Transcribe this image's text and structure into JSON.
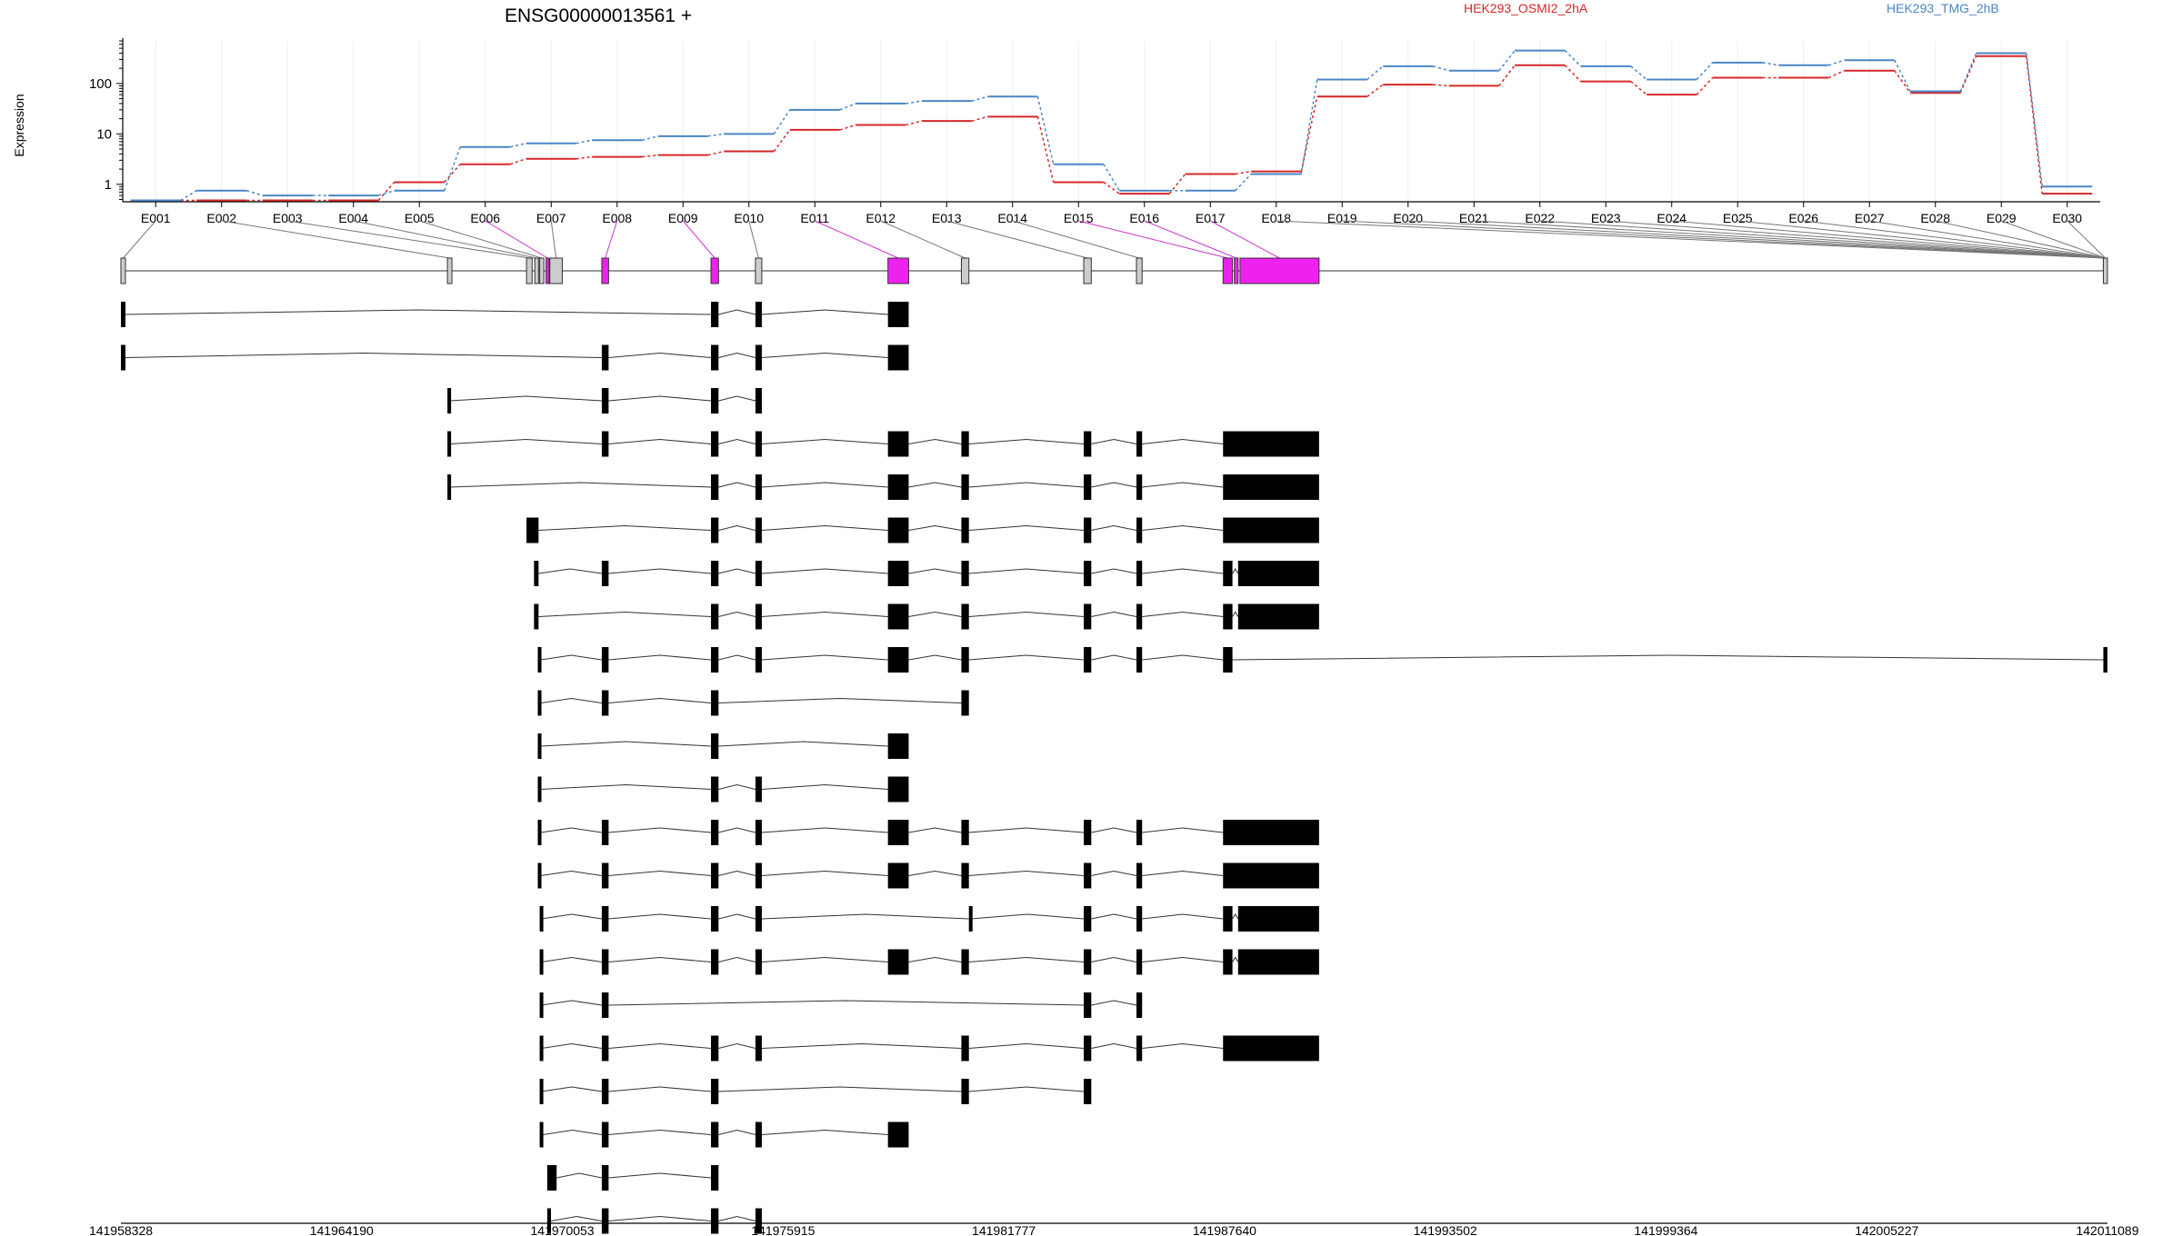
{
  "chart_data": {
    "type": "line",
    "title": "ENSG00000013561 +",
    "ylabel": "Expression",
    "y_scale": "log",
    "y_ticks": [
      {
        "value": 1,
        "label": "1"
      },
      {
        "value": 10,
        "label": "10"
      },
      {
        "value": 100,
        "label": "100"
      }
    ],
    "ylim": [
      0.45,
      700
    ],
    "legend_placement": "top-right",
    "grid": true,
    "categories": [
      "E001",
      "E002",
      "E003",
      "E004",
      "E005",
      "E006",
      "E007",
      "E008",
      "E009",
      "E010",
      "E011",
      "E012",
      "E013",
      "E014",
      "E015",
      "E016",
      "E017",
      "E018",
      "E019",
      "E020",
      "E021",
      "E022",
      "E023",
      "E024",
      "E025",
      "E026",
      "E027",
      "E028",
      "E029",
      "E030"
    ],
    "series": [
      {
        "name": "HEK293_OSMI2_2hA",
        "color": "#d62728",
        "values": [
          0.48,
          0.48,
          0.48,
          0.48,
          1.1,
          2.5,
          3.2,
          3.5,
          3.8,
          4.5,
          12,
          15,
          18,
          22,
          1.1,
          0.65,
          1.6,
          1.8,
          55,
          95,
          90,
          230,
          110,
          60,
          130,
          130,
          180,
          65,
          350,
          0.65
        ]
      },
      {
        "name": "HEK293_TMG_2hB",
        "color": "#4a86c5",
        "values": [
          0.48,
          0.75,
          0.6,
          0.6,
          0.75,
          5.5,
          6.5,
          7.5,
          9,
          10,
          30,
          40,
          45,
          55,
          2.5,
          0.75,
          0.75,
          1.6,
          120,
          220,
          180,
          450,
          220,
          120,
          260,
          230,
          290,
          70,
          400,
          0.9
        ]
      }
    ],
    "exon_model": {
      "gene_start": 141958328,
      "gene_end": 142011089,
      "exons": [
        {
          "start": 141958328,
          "end": 141958448,
          "highlight": false
        },
        {
          "start": 141967000,
          "end": 141967120,
          "highlight": false
        },
        {
          "start": 141969100,
          "end": 141969250,
          "highlight": false
        },
        {
          "start": 141969320,
          "end": 141969420,
          "highlight": false
        },
        {
          "start": 141969450,
          "end": 141969560,
          "highlight": false
        },
        {
          "start": 141969620,
          "end": 141969700,
          "highlight": true
        },
        {
          "start": 141969720,
          "end": 141970050,
          "highlight": false
        },
        {
          "start": 141971100,
          "end": 141971280,
          "highlight": true
        },
        {
          "start": 141974000,
          "end": 141974200,
          "highlight": true
        },
        {
          "start": 141975180,
          "end": 141975350,
          "highlight": false
        },
        {
          "start": 141978700,
          "end": 141979250,
          "highlight": true
        },
        {
          "start": 141980650,
          "end": 141980850,
          "highlight": false
        },
        {
          "start": 141983900,
          "end": 141984100,
          "highlight": false
        },
        {
          "start": 141985300,
          "end": 141985450,
          "highlight": false
        },
        {
          "start": 141987600,
          "end": 141987850,
          "highlight": true
        },
        {
          "start": 141987900,
          "end": 141988000,
          "highlight": true
        },
        {
          "start": 141988050,
          "end": 141990150,
          "highlight": true
        },
        {
          "start": 142010980,
          "end": 142011089,
          "highlight": false
        }
      ]
    },
    "transcripts": [
      [
        [
          141958328,
          141958448
        ],
        [
          141974000,
          141974200
        ],
        [
          141975180,
          141975350
        ],
        [
          141978700,
          141979250
        ]
      ],
      [
        [
          141958328,
          141958448
        ],
        [
          141971100,
          141971280
        ],
        [
          141974000,
          141974200
        ],
        [
          141975180,
          141975350
        ],
        [
          141978700,
          141979250
        ]
      ],
      [
        [
          141967000,
          141967070
        ],
        [
          141971100,
          141971280
        ],
        [
          141974000,
          141974200
        ],
        [
          141975180,
          141975350
        ]
      ],
      [
        [
          141967000,
          141967070
        ],
        [
          141971100,
          141971280
        ],
        [
          141974000,
          141974200
        ],
        [
          141975180,
          141975350
        ],
        [
          141978700,
          141979250
        ],
        [
          141980650,
          141980850
        ],
        [
          141983900,
          141984100
        ],
        [
          141985300,
          141985450
        ],
        [
          141987600,
          141990150
        ]
      ],
      [
        [
          141967000,
          141967070
        ],
        [
          141974000,
          141974200
        ],
        [
          141975180,
          141975350
        ],
        [
          141978700,
          141979250
        ],
        [
          141980650,
          141980850
        ],
        [
          141983900,
          141984100
        ],
        [
          141985300,
          141985450
        ],
        [
          141987600,
          141990150
        ]
      ],
      [
        [
          141969100,
          141969420
        ],
        [
          141974000,
          141974200
        ],
        [
          141975180,
          141975350
        ],
        [
          141978700,
          141979250
        ],
        [
          141980650,
          141980850
        ],
        [
          141983900,
          141984100
        ],
        [
          141985300,
          141985450
        ],
        [
          141987600,
          141990150
        ]
      ],
      [
        [
          141969300,
          141969420
        ],
        [
          141971100,
          141971280
        ],
        [
          141974000,
          141974200
        ],
        [
          141975180,
          141975350
        ],
        [
          141978700,
          141979250
        ],
        [
          141980650,
          141980850
        ],
        [
          141983900,
          141984100
        ],
        [
          141985300,
          141985450
        ],
        [
          141987600,
          141987850
        ],
        [
          141988000,
          141990150
        ]
      ],
      [
        [
          141969300,
          141969420
        ],
        [
          141974000,
          141974200
        ],
        [
          141975180,
          141975350
        ],
        [
          141978700,
          141979250
        ],
        [
          141980650,
          141980850
        ],
        [
          141983900,
          141984100
        ],
        [
          141985300,
          141985450
        ],
        [
          141987600,
          141987850
        ],
        [
          141988000,
          141990150
        ]
      ],
      [
        [
          141969400,
          141969480
        ],
        [
          141971100,
          141971280
        ],
        [
          141974000,
          141974200
        ],
        [
          141975180,
          141975350
        ],
        [
          141978700,
          141979250
        ],
        [
          141980650,
          141980850
        ],
        [
          141983900,
          141984100
        ],
        [
          141985300,
          141985450
        ],
        [
          141987600,
          141987850
        ],
        [
          142010980,
          142011089
        ]
      ],
      [
        [
          141969400,
          141969480
        ],
        [
          141971100,
          141971280
        ],
        [
          141974000,
          141974200
        ],
        [
          141980650,
          141980850
        ]
      ],
      [
        [
          141969400,
          141969480
        ],
        [
          141974000,
          141974200
        ],
        [
          141978700,
          141979250
        ]
      ],
      [
        [
          141969400,
          141969480
        ],
        [
          141974000,
          141974200
        ],
        [
          141975180,
          141975350
        ],
        [
          141978700,
          141979250
        ]
      ],
      [
        [
          141969400,
          141969480
        ],
        [
          141971100,
          141971280
        ],
        [
          141974000,
          141974200
        ],
        [
          141975180,
          141975350
        ],
        [
          141978700,
          141979250
        ],
        [
          141980650,
          141980850
        ],
        [
          141983900,
          141984100
        ],
        [
          141985300,
          141985450
        ],
        [
          141987600,
          141990150
        ]
      ],
      [
        [
          141969400,
          141969480
        ],
        [
          141971100,
          141971280
        ],
        [
          141974000,
          141974200
        ],
        [
          141975180,
          141975350
        ],
        [
          141978700,
          141979250
        ],
        [
          141980650,
          141980850
        ],
        [
          141983900,
          141984100
        ],
        [
          141985300,
          141985450
        ],
        [
          141987600,
          141990150
        ]
      ],
      [
        [
          141969450,
          141969500
        ],
        [
          141971100,
          141971280
        ],
        [
          141974000,
          141974200
        ],
        [
          141975180,
          141975350
        ],
        [
          141980850,
          141980900
        ],
        [
          141983900,
          141984100
        ],
        [
          141985300,
          141985450
        ],
        [
          141987600,
          141987850
        ],
        [
          141988000,
          141990150
        ]
      ],
      [
        [
          141969450,
          141969500
        ],
        [
          141971100,
          141971280
        ],
        [
          141974000,
          141974200
        ],
        [
          141975180,
          141975350
        ],
        [
          141978700,
          141979250
        ],
        [
          141980650,
          141980850
        ],
        [
          141983900,
          141984100
        ],
        [
          141985300,
          141985450
        ],
        [
          141987600,
          141987850
        ],
        [
          141988000,
          141990150
        ]
      ],
      [
        [
          141969450,
          141969500
        ],
        [
          141971100,
          141971280
        ],
        [
          141983900,
          141984100
        ],
        [
          141985300,
          141985450
        ]
      ],
      [
        [
          141969450,
          141969500
        ],
        [
          141971100,
          141971280
        ],
        [
          141974000,
          141974200
        ],
        [
          141975180,
          141975350
        ],
        [
          141980650,
          141980850
        ],
        [
          141983900,
          141984100
        ],
        [
          141985300,
          141985450
        ],
        [
          141987600,
          141990150
        ]
      ],
      [
        [
          141969450,
          141969500
        ],
        [
          141971100,
          141971280
        ],
        [
          141974000,
          141974200
        ],
        [
          141980650,
          141980850
        ],
        [
          141983900,
          141984100
        ]
      ],
      [
        [
          141969450,
          141969540
        ],
        [
          141971100,
          141971280
        ],
        [
          141974000,
          141974200
        ],
        [
          141975180,
          141975350
        ],
        [
          141978700,
          141979250
        ]
      ],
      [
        [
          141969650,
          141969900
        ],
        [
          141971100,
          141971280
        ],
        [
          141974000,
          141974200
        ]
      ],
      [
        [
          141969650,
          141969750
        ],
        [
          141971100,
          141971280
        ],
        [
          141974000,
          141974200
        ],
        [
          141975180,
          141975350
        ]
      ]
    ],
    "coordinate_axis": {
      "ticks": [
        141958328,
        141964190,
        141970053,
        141975915,
        141981777,
        141987640,
        141993502,
        141999364,
        142005227,
        142011089
      ],
      "tick_labels": [
        "141958328",
        "141964190",
        "141970053",
        "141975915",
        "141981777",
        "141987640",
        "141993502",
        "141999364",
        "142005227",
        "142011089"
      ]
    }
  }
}
